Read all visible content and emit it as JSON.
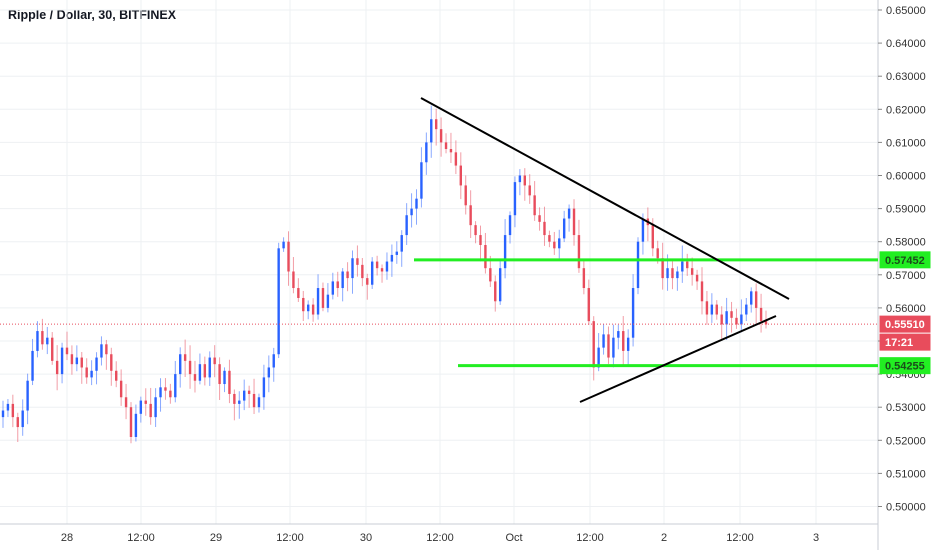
{
  "title": "Ripple / Dollar, 30, BITFINEX",
  "chart_data": {
    "type": "candlestick",
    "symbol": "Ripple / Dollar",
    "interval": "30",
    "exchange": "BITFINEX",
    "y_range": [
      0.495,
      0.652
    ],
    "y_ticks": [
      "0.65000",
      "0.64000",
      "0.63000",
      "0.62000",
      "0.61000",
      "0.60000",
      "0.59000",
      "0.58000",
      "0.57000",
      "0.56000",
      "0.55000",
      "0.54000",
      "0.53000",
      "0.52000",
      "0.51000",
      "0.50000"
    ],
    "x_ticks": [
      "28",
      "12:00",
      "29",
      "12:00",
      "30",
      "12:00",
      "Oct",
      "12:00",
      "2",
      "12:00",
      "3"
    ],
    "price_labels": {
      "resistance": "0.57452",
      "last": "0.55510",
      "countdown": "17:21",
      "support": "0.54255"
    },
    "colors": {
      "up": "#2962ff",
      "down": "#e84c5c",
      "level_line": "#22ee22",
      "trendline": "#000000",
      "last_price": "#e84c5c"
    },
    "annotations": [
      {
        "type": "horizontal_level",
        "value": 0.57452,
        "color": "green"
      },
      {
        "type": "horizontal_level",
        "value": 0.54255,
        "color": "green"
      },
      {
        "type": "trendline",
        "name": "upper-descending",
        "from": [
          0.6235
        ],
        "to": [
          0.5615
        ]
      },
      {
        "type": "trendline",
        "name": "lower-ascending",
        "from": [
          0.5303
        ],
        "to": [
          0.5572
        ]
      }
    ],
    "price_path": [
      0.529,
      0.531,
      0.527,
      0.524,
      0.529,
      0.538,
      0.547,
      0.553,
      0.549,
      0.551,
      0.544,
      0.54,
      0.548,
      0.546,
      0.543,
      0.545,
      0.542,
      0.539,
      0.541,
      0.545,
      0.549,
      0.546,
      0.541,
      0.538,
      0.533,
      0.53,
      0.521,
      0.528,
      0.532,
      0.531,
      0.527,
      0.533,
      0.536,
      0.535,
      0.533,
      0.54,
      0.546,
      0.544,
      0.54,
      0.538,
      0.543,
      0.539,
      0.545,
      0.543,
      0.537,
      0.541,
      0.534,
      0.531,
      0.532,
      0.535,
      0.534,
      0.53,
      0.533,
      0.539,
      0.542,
      0.546,
      0.578,
      0.58,
      0.571,
      0.566,
      0.563,
      0.559,
      0.561,
      0.558,
      0.566,
      0.56,
      0.564,
      0.568,
      0.566,
      0.571,
      0.569,
      0.575,
      0.573,
      0.569,
      0.567,
      0.574,
      0.572,
      0.571,
      0.574,
      0.576,
      0.577,
      0.582,
      0.588,
      0.59,
      0.593,
      0.604,
      0.61,
      0.617,
      0.614,
      0.61,
      0.608,
      0.607,
      0.603,
      0.597,
      0.591,
      0.585,
      0.582,
      0.579,
      0.572,
      0.568,
      0.562,
      0.572,
      0.582,
      0.588,
      0.598,
      0.6,
      0.597,
      0.594,
      0.588,
      0.586,
      0.582,
      0.58,
      0.578,
      0.581,
      0.587,
      0.59,
      0.582,
      0.572,
      0.566,
      0.556,
      0.542,
      0.548,
      0.552,
      0.545,
      0.551,
      0.553,
      0.547,
      0.551,
      0.566,
      0.58,
      0.587,
      0.585,
      0.578,
      0.575,
      0.569,
      0.572,
      0.569,
      0.571,
      0.574,
      0.572,
      0.57,
      0.568,
      0.562,
      0.558,
      0.561,
      0.558,
      0.555,
      0.559,
      0.557,
      0.555,
      0.558,
      0.561,
      0.565,
      0.56,
      0.556,
      0.555
    ]
  }
}
